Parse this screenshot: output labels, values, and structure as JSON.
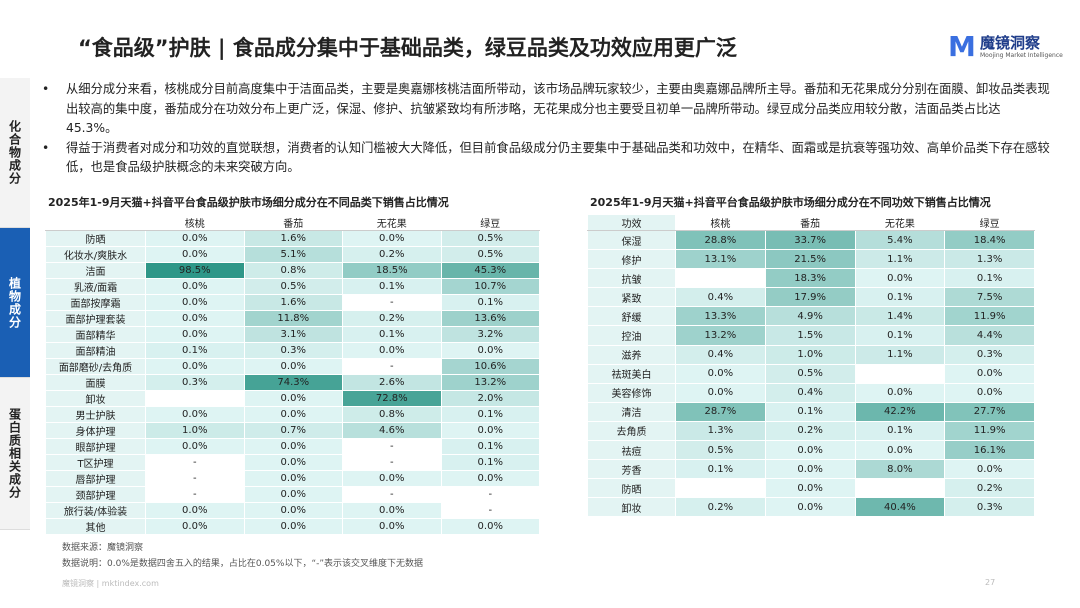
{
  "header": {
    "title": "“食品级”护肤 | 食品成分集中于基础品类，绿豆品类及功效应用更广泛",
    "logo": "魔镜洞察",
    "logo_sub": "Moojing Market Intelligence"
  },
  "sidebar": [
    "化合物成分",
    "植物成分",
    "蛋白质相关成分"
  ],
  "bullets": [
    "从细分成分来看，核桃成分目前高度集中于洁面品类，主要是奥嘉娜核桃洁面所带动，该市场品牌玩家较少，主要由奥嘉娜品牌所主导。番茄和无花果成分分别在面膜、卸妆品类表现出较高的集中度，番茄成分在功效分布上更广泛，保湿、修护、抗皱紧致均有所涉略，无花果成分也主要受且初单一品牌所带动。绿豆成分品类应用较分散，洁面品类占比达45.3%。",
    "得益于消费者对成分和功效的直觉联想，消费者的认知门槛被大大降低，但目前食品级成分仍主要集中于基础品类和功效中，在精华、面霜或是抗衰等强功效、高单价品类下存在感较低，也是食品级护肤概念的未来突破方向。"
  ],
  "left_table": {
    "title": "2025年1-9月天猫+抖音平台食品级护肤市场细分成分在不同品类下销售占比情况",
    "columns": [
      null,
      "核桃",
      "番茄",
      "无花果",
      "绿豆"
    ],
    "rows": [
      [
        "防晒",
        "0.0%",
        "1.6%",
        "0.0%",
        "0.5%"
      ],
      [
        "化妆水/爽肤水",
        "0.0%",
        "5.1%",
        "0.2%",
        "0.5%"
      ],
      [
        "洁面",
        "98.5%",
        "0.8%",
        "18.5%",
        "45.3%"
      ],
      [
        "乳液/面霜",
        "0.0%",
        "0.5%",
        "0.1%",
        "10.7%"
      ],
      [
        "面部按摩霜",
        "0.0%",
        "1.6%",
        "-",
        "0.1%"
      ],
      [
        "面部护理套装",
        "0.0%",
        "11.8%",
        "0.2%",
        "13.6%"
      ],
      [
        "面部精华",
        "0.0%",
        "3.1%",
        "0.1%",
        "3.2%"
      ],
      [
        "面部精油",
        "0.1%",
        "0.3%",
        "0.0%",
        "0.0%"
      ],
      [
        "面部磨砂/去角质",
        "0.0%",
        "0.0%",
        "-",
        "10.6%"
      ],
      [
        "面膜",
        "0.3%",
        "74.3%",
        "2.6%",
        "13.2%"
      ],
      [
        "卸妆",
        null,
        "0.0%",
        "72.8%",
        "2.0%"
      ],
      [
        "男士护肤",
        "0.0%",
        "0.0%",
        "0.8%",
        "0.1%"
      ],
      [
        "身体护理",
        "1.0%",
        "0.7%",
        "4.6%",
        "0.0%"
      ],
      [
        "眼部护理",
        "0.0%",
        "0.0%",
        "-",
        "0.1%"
      ],
      [
        "T区护理",
        "-",
        "0.0%",
        "-",
        "0.1%"
      ],
      [
        "唇部护理",
        "-",
        "0.0%",
        "0.0%",
        "0.0%"
      ],
      [
        "颈部护理",
        "-",
        "0.0%",
        "-",
        "-"
      ],
      [
        "旅行装/体验装",
        "0.0%",
        "0.0%",
        "0.0%",
        "-"
      ],
      [
        "其他",
        "0.0%",
        "0.0%",
        "0.0%",
        "0.0%"
      ]
    ]
  },
  "right_table": {
    "title": "2025年1-9月天猫+抖音平台食品级护肤市场细分成分在不同功效下销售占比情况",
    "columns": [
      "功效",
      "核桃",
      "番茄",
      "无花果",
      "绿豆"
    ],
    "rows": [
      [
        "保湿",
        "28.8%",
        "33.7%",
        "5.4%",
        "18.4%"
      ],
      [
        "修护",
        "13.1%",
        "21.5%",
        "1.1%",
        "1.3%"
      ],
      [
        "抗皱",
        null,
        "18.3%",
        "0.0%",
        "0.1%"
      ],
      [
        "紧致",
        "0.4%",
        "17.9%",
        "0.1%",
        "7.5%"
      ],
      [
        "舒缓",
        "13.3%",
        "4.9%",
        "1.4%",
        "11.9%"
      ],
      [
        "控油",
        "13.2%",
        "1.5%",
        "0.1%",
        "4.4%"
      ],
      [
        "滋养",
        "0.4%",
        "1.0%",
        "1.1%",
        "0.3%"
      ],
      [
        "祛斑美白",
        "0.0%",
        "0.5%",
        null,
        "0.0%"
      ],
      [
        "美容修饰",
        "0.0%",
        "0.4%",
        "0.0%",
        "0.0%"
      ],
      [
        "清洁",
        "28.7%",
        "0.1%",
        "42.2%",
        "27.7%"
      ],
      [
        "去角质",
        "1.3%",
        "0.2%",
        "0.1%",
        "11.9%"
      ],
      [
        "祛痘",
        "0.5%",
        "0.0%",
        "0.0%",
        "16.1%"
      ],
      [
        "芳香",
        "0.1%",
        "0.0%",
        "8.0%",
        "0.0%"
      ],
      [
        "防晒",
        null,
        "0.0%",
        null,
        "0.2%"
      ],
      [
        "卸妆",
        "0.2%",
        "0.0%",
        "40.4%",
        "0.3%"
      ]
    ]
  },
  "footer": {
    "source": "数据来源：魔镜洞察",
    "note": "数据说明：0.0%是数据四舍五入的结果，占比在0.05%以下，“-”表示该交叉维度下无数据",
    "site": "魔镜洞察 | mktindex.com",
    "page": "27"
  }
}
